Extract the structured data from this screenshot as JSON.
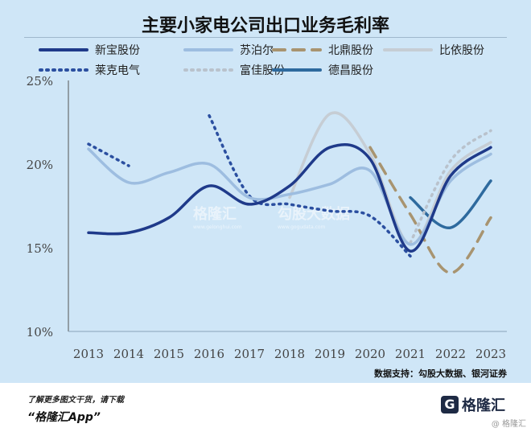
{
  "page": {
    "title": "主要小家电公司出口业务毛利率",
    "source": "数据支持：勾股大数据、银河证券",
    "watermark1": "格隆汇",
    "watermark1_sub": "www.gelonghui.com",
    "watermark2": "勾股大数据",
    "watermark2_sub": "www.gogudata.com",
    "footer_line1": "了解更多图文干货，请下载",
    "footer_line2": "“格隆汇App”",
    "logo_glyph": "G",
    "logo_text": "格隆汇",
    "corner_mark": "@ 格隆汇"
  },
  "chart_data": {
    "type": "line",
    "title": "主要小家电公司出口业务毛利率",
    "categories": [
      "2013",
      "2014",
      "2015",
      "2016",
      "2017",
      "2018",
      "2019",
      "2020",
      "2021",
      "2022",
      "2023"
    ],
    "ylim": [
      10,
      25
    ],
    "yticks": [
      10,
      15,
      20,
      25
    ],
    "ytick_labels": [
      "10%",
      "15%",
      "20%",
      "25%"
    ],
    "grid": false,
    "legend_position": "top",
    "series": [
      {
        "name": "新宝股份",
        "color": "#1f3a8a",
        "style": "solid",
        "values": [
          15.9,
          15.9,
          16.8,
          18.7,
          17.6,
          18.7,
          21.0,
          20.3,
          14.8,
          19.3,
          21.0
        ]
      },
      {
        "name": "苏泊尔",
        "color": "#9dbde0",
        "style": "solid",
        "values": [
          20.9,
          18.9,
          19.5,
          20.0,
          18.0,
          18.2,
          18.8,
          19.6,
          15.2,
          19.0,
          20.6
        ]
      },
      {
        "name": "北鼎股份",
        "color": "#a89470",
        "style": "dashed",
        "values": [
          null,
          null,
          null,
          null,
          null,
          null,
          null,
          21.0,
          17.0,
          13.5,
          16.8
        ]
      },
      {
        "name": "比依股份",
        "color": "#c6cdd4",
        "style": "solid",
        "values": [
          null,
          null,
          null,
          null,
          null,
          18.0,
          23.0,
          20.6,
          15.2,
          19.6,
          21.3
        ]
      },
      {
        "name": "莱克电气",
        "color": "#2b4fa0",
        "style": "dotted",
        "values": [
          21.2,
          19.9,
          null,
          22.9,
          18.1,
          17.6,
          17.2,
          16.9,
          14.5,
          null,
          null
        ]
      },
      {
        "name": "富佳股份",
        "color": "#b9c2cc",
        "style": "dotted",
        "values": [
          null,
          null,
          null,
          null,
          null,
          null,
          null,
          null,
          15.3,
          20.2,
          22.0
        ]
      },
      {
        "name": "德昌股份",
        "color": "#2e6a9e",
        "style": "solid",
        "values": [
          null,
          null,
          null,
          null,
          null,
          null,
          null,
          null,
          18.0,
          16.2,
          19.0
        ]
      }
    ]
  }
}
